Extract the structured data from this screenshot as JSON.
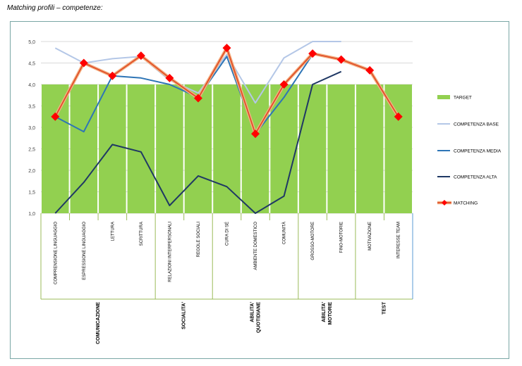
{
  "doc_title": "Matching profili – competenze:",
  "chart_data": {
    "type": "line",
    "ylim": [
      1.0,
      5.0
    ],
    "y_ticks": [
      "1,0",
      "1,5",
      "2,0",
      "2,5",
      "3,0",
      "3,5",
      "4,0",
      "4,5",
      "5,0"
    ],
    "categories": [
      "COMPRENSIONE LINGUAGGIO",
      "ESPRESSIONE LINGUAGGIO",
      "LETTURA",
      "SCRITTURA",
      "RELAZIONI INTERPERSONALI",
      "REGOLE SOCIALI",
      "CURA DI SÉ",
      "AMBIENTE DOMESTICO",
      "COMUNITÀ",
      "GROSSO-MOTORE",
      "FINO-MOTORIE",
      "MOTIVAZIONE",
      "INTERESSE TEAM"
    ],
    "groups": [
      {
        "label": [
          "COMUNICAZIONE"
        ],
        "start": 0,
        "end": 3
      },
      {
        "label": [
          "SOCIALITA'"
        ],
        "start": 4,
        "end": 5
      },
      {
        "label": [
          "ABILITA'",
          "QUOTIDIANE"
        ],
        "start": 6,
        "end": 8
      },
      {
        "label": [
          "ABILITA'",
          "MOTORIE"
        ],
        "start": 9,
        "end": 10
      },
      {
        "label": [
          "TEST"
        ],
        "start": 11,
        "end": 12
      }
    ],
    "series": [
      {
        "name": "TARGET",
        "kind": "bar",
        "color": "#92d050",
        "values": [
          4,
          4,
          4,
          4,
          4,
          4,
          4,
          4,
          4,
          4,
          4,
          4,
          4
        ]
      },
      {
        "name": "COMPETENZA BASE",
        "kind": "line",
        "color": "#b4c7e7",
        "values": [
          4.85,
          4.5,
          4.6,
          4.65,
          4.1,
          3.8,
          4.7,
          3.57,
          4.62,
          5.0,
          5.0,
          null,
          null
        ]
      },
      {
        "name": "COMPETENZA MEDIA",
        "kind": "line",
        "color": "#2e75b6",
        "values": [
          3.25,
          2.9,
          4.2,
          4.15,
          4.0,
          3.7,
          4.65,
          2.85,
          3.7,
          4.7,
          null,
          null,
          null
        ]
      },
      {
        "name": "COMPETENZA ALTA",
        "kind": "line",
        "color": "#1f3864",
        "values": [
          1.0,
          1.72,
          2.6,
          2.43,
          1.18,
          1.87,
          1.62,
          1.0,
          1.4,
          4.0,
          4.3,
          null,
          null
        ]
      },
      {
        "name": "MATCHING",
        "kind": "line-marker",
        "color": "#e0502a",
        "marker": "#ff0000",
        "values": [
          3.25,
          4.5,
          4.2,
          4.67,
          4.15,
          3.68,
          4.85,
          2.85,
          4.0,
          4.72,
          4.58,
          4.33,
          3.25
        ]
      }
    ],
    "legend_position": "right",
    "grid": true
  }
}
